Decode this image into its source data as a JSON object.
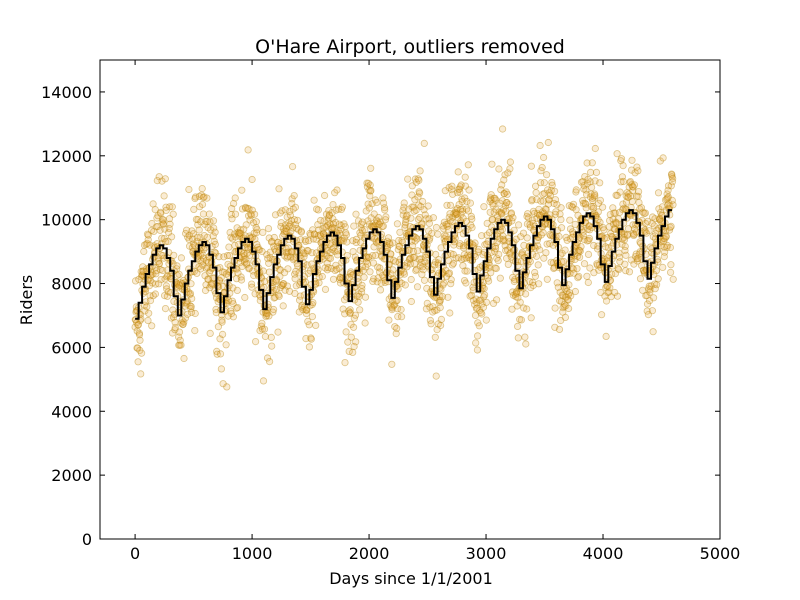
{
  "chart_data": {
    "type": "scatter",
    "title": "O'Hare Airport, outliers removed",
    "xlabel": "Days since 1/1/2001",
    "ylabel": "Riders",
    "xlim": [
      -300,
      5000
    ],
    "ylim": [
      0,
      15000
    ],
    "xticks": [
      0,
      1000,
      2000,
      3000,
      4000,
      5000
    ],
    "yticks": [
      0,
      2000,
      4000,
      6000,
      8000,
      10000,
      12000,
      14000
    ],
    "grid": false,
    "legend": "none",
    "colors": {
      "points": "#e8a93a",
      "points_edge": "#b8860b",
      "line": "#000000"
    },
    "series": [
      {
        "type": "scatter",
        "description": "daily ridership, approx. 4600 days, seasonal pattern around fitted model",
        "x_range": [
          0,
          4600
        ],
        "y_range": [
          5700,
          12800
        ]
      },
      {
        "type": "step-line",
        "description": "fitted monthly model",
        "points": [
          [
            0,
            6900
          ],
          [
            30,
            7400
          ],
          [
            60,
            7900
          ],
          [
            90,
            8300
          ],
          [
            120,
            8600
          ],
          [
            150,
            8900
          ],
          [
            180,
            9100
          ],
          [
            210,
            9200
          ],
          [
            240,
            9100
          ],
          [
            270,
            8800
          ],
          [
            300,
            8400
          ],
          [
            330,
            7600
          ],
          [
            365,
            7000
          ],
          [
            395,
            7500
          ],
          [
            425,
            8000
          ],
          [
            455,
            8400
          ],
          [
            485,
            8700
          ],
          [
            515,
            9000
          ],
          [
            545,
            9200
          ],
          [
            575,
            9300
          ],
          [
            605,
            9200
          ],
          [
            635,
            8900
          ],
          [
            665,
            8500
          ],
          [
            695,
            7700
          ],
          [
            730,
            7100
          ],
          [
            760,
            7600
          ],
          [
            790,
            8100
          ],
          [
            820,
            8500
          ],
          [
            850,
            8800
          ],
          [
            880,
            9100
          ],
          [
            910,
            9300
          ],
          [
            940,
            9400
          ],
          [
            970,
            9300
          ],
          [
            1000,
            9000
          ],
          [
            1030,
            8600
          ],
          [
            1060,
            7800
          ],
          [
            1095,
            7200
          ],
          [
            1125,
            7700
          ],
          [
            1155,
            8200
          ],
          [
            1185,
            8600
          ],
          [
            1215,
            8900
          ],
          [
            1245,
            9200
          ],
          [
            1275,
            9400
          ],
          [
            1305,
            9500
          ],
          [
            1335,
            9400
          ],
          [
            1365,
            9100
          ],
          [
            1395,
            8700
          ],
          [
            1425,
            7900
          ],
          [
            1460,
            7350
          ],
          [
            1490,
            7800
          ],
          [
            1520,
            8300
          ],
          [
            1550,
            8700
          ],
          [
            1580,
            9000
          ],
          [
            1610,
            9300
          ],
          [
            1640,
            9500
          ],
          [
            1670,
            9600
          ],
          [
            1700,
            9500
          ],
          [
            1730,
            9200
          ],
          [
            1760,
            8800
          ],
          [
            1790,
            8000
          ],
          [
            1825,
            7450
          ],
          [
            1855,
            7950
          ],
          [
            1885,
            8400
          ],
          [
            1915,
            8800
          ],
          [
            1945,
            9100
          ],
          [
            1975,
            9400
          ],
          [
            2005,
            9600
          ],
          [
            2035,
            9700
          ],
          [
            2065,
            9600
          ],
          [
            2095,
            9300
          ],
          [
            2125,
            8900
          ],
          [
            2155,
            8100
          ],
          [
            2190,
            7550
          ],
          [
            2220,
            8050
          ],
          [
            2250,
            8500
          ],
          [
            2280,
            8900
          ],
          [
            2310,
            9200
          ],
          [
            2340,
            9500
          ],
          [
            2370,
            9700
          ],
          [
            2400,
            9800
          ],
          [
            2430,
            9700
          ],
          [
            2460,
            9400
          ],
          [
            2490,
            9000
          ],
          [
            2520,
            8200
          ],
          [
            2555,
            7650
          ],
          [
            2585,
            8150
          ],
          [
            2615,
            8600
          ],
          [
            2645,
            9000
          ],
          [
            2675,
            9300
          ],
          [
            2705,
            9600
          ],
          [
            2735,
            9800
          ],
          [
            2765,
            9900
          ],
          [
            2795,
            9800
          ],
          [
            2825,
            9500
          ],
          [
            2855,
            9100
          ],
          [
            2885,
            8300
          ],
          [
            2920,
            7750
          ],
          [
            2950,
            8250
          ],
          [
            2980,
            8700
          ],
          [
            3010,
            9100
          ],
          [
            3040,
            9400
          ],
          [
            3070,
            9700
          ],
          [
            3100,
            9900
          ],
          [
            3130,
            10000
          ],
          [
            3160,
            9900
          ],
          [
            3190,
            9600
          ],
          [
            3220,
            9200
          ],
          [
            3250,
            8400
          ],
          [
            3285,
            7850
          ],
          [
            3315,
            8350
          ],
          [
            3345,
            8800
          ],
          [
            3375,
            9200
          ],
          [
            3405,
            9500
          ],
          [
            3435,
            9800
          ],
          [
            3465,
            10000
          ],
          [
            3495,
            10100
          ],
          [
            3525,
            10000
          ],
          [
            3555,
            9700
          ],
          [
            3585,
            9300
          ],
          [
            3615,
            8500
          ],
          [
            3650,
            7950
          ],
          [
            3680,
            8450
          ],
          [
            3710,
            8900
          ],
          [
            3740,
            9300
          ],
          [
            3770,
            9600
          ],
          [
            3800,
            9900
          ],
          [
            3830,
            10100
          ],
          [
            3860,
            10200
          ],
          [
            3890,
            10100
          ],
          [
            3920,
            9800
          ],
          [
            3950,
            9400
          ],
          [
            3980,
            8600
          ],
          [
            4015,
            8050
          ],
          [
            4045,
            8550
          ],
          [
            4075,
            9000
          ],
          [
            4105,
            9400
          ],
          [
            4135,
            9700
          ],
          [
            4165,
            10000
          ],
          [
            4195,
            10200
          ],
          [
            4225,
            10300
          ],
          [
            4255,
            10200
          ],
          [
            4285,
            9900
          ],
          [
            4315,
            9500
          ],
          [
            4345,
            8700
          ],
          [
            4380,
            8150
          ],
          [
            4410,
            8650
          ],
          [
            4440,
            9100
          ],
          [
            4470,
            9500
          ],
          [
            4500,
            9800
          ],
          [
            4530,
            10100
          ],
          [
            4560,
            10300
          ],
          [
            4590,
            10300
          ]
        ]
      }
    ]
  }
}
